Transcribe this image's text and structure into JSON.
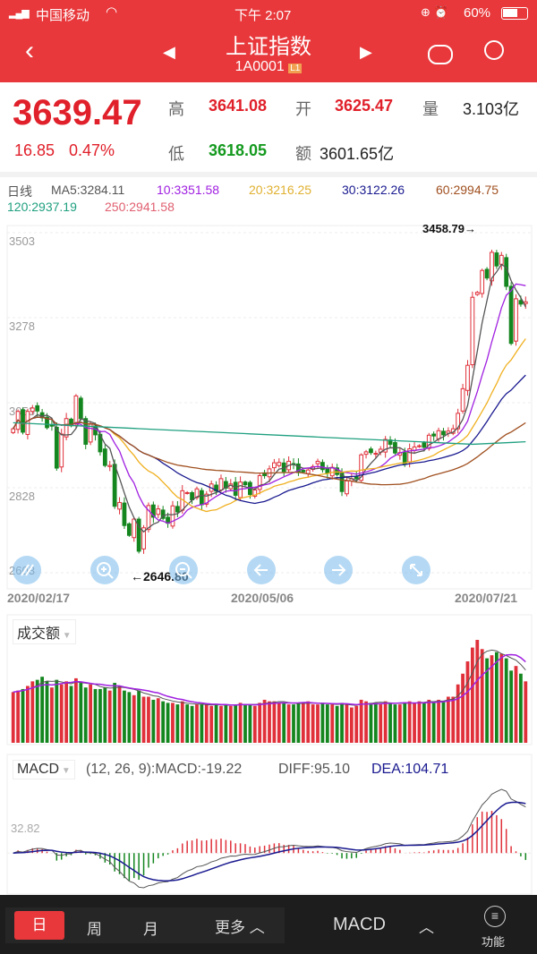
{
  "status": {
    "carrier": "中国移动",
    "time": "下午 2:07",
    "battery": "60%"
  },
  "nav": {
    "title": "上证指数",
    "code": "1A0001",
    "level_badge": "L1",
    "icons": [
      "back-chevron-icon",
      "prev-triangle-icon",
      "next-triangle-icon",
      "robot-icon",
      "search-icon"
    ]
  },
  "quote": {
    "price": "3639.47",
    "change": "16.85",
    "change_pct": "0.47%",
    "high_label": "高",
    "high": "3641.08",
    "open_label": "开",
    "open": "3625.47",
    "vol_label": "量",
    "vol": "3.103亿",
    "low_label": "低",
    "low": "3618.05",
    "amount_label": "额",
    "amount": "3601.65亿"
  },
  "ma_legend": {
    "period": "日线",
    "ma5": "MA5:3284.11",
    "ma10": "10:3351.58",
    "ma20": "20:3216.25",
    "ma30": "30:3122.26",
    "ma60": "60:2994.75",
    "ma120": "120:2937.19",
    "ma250": "250:2941.58"
  },
  "colors": {
    "up": "#e0303a",
    "down": "#14861f",
    "ma5": "#555555",
    "ma10": "#a020e0",
    "ma20": "#f0b020",
    "ma30": "#1a1a90",
    "ma60": "#a05020",
    "ma120": "#20a080",
    "ma250": "#e06070",
    "accent": "#e8383b"
  },
  "chart_data": {
    "type": "candlestick",
    "y_ticks": [
      "3503",
      "3278",
      "3053",
      "2828",
      "2603"
    ],
    "ylim": [
      2603,
      3503
    ],
    "x_labels": [
      "2020/02/17",
      "2020/05/06",
      "2020/07/21"
    ],
    "max_marker": "3458.79→",
    "min_marker": "←2646.80",
    "closes": [
      2984,
      3030,
      2975,
      3030,
      3039,
      3031,
      3013,
      2987,
      2991,
      2880,
      2970,
      3011,
      2992,
      3071,
      3011,
      2943,
      2996,
      2968,
      2923,
      2887,
      2887,
      2779,
      2789,
      2728,
      2702,
      2745,
      2660,
      2722,
      2781,
      2750,
      2772,
      2747,
      2734,
      2780,
      2764,
      2820,
      2815,
      2796,
      2825,
      2783,
      2811,
      2838,
      2819,
      2852,
      2827,
      2838,
      2808,
      2843,
      2836,
      2810,
      2822,
      2860,
      2860,
      2878,
      2894,
      2895,
      2871,
      2898,
      2891,
      2868,
      2870,
      2875,
      2884,
      2898,
      2876,
      2867,
      2882,
      2863,
      2818,
      2846,
      2852,
      2852,
      2915,
      2923,
      2921,
      2919,
      2930,
      2956,
      2943,
      2920,
      2921,
      2890,
      2931,
      2936,
      2939,
      2935,
      2967,
      2965,
      2979,
      2968,
      2978,
      2984,
      3025,
      3090,
      3152,
      3332,
      3345,
      3403,
      3383,
      3451,
      3415,
      3443,
      3361,
      3210,
      3328,
      3314,
      3320
    ],
    "volume_label": "成交额",
    "volumes": [
      3300,
      3400,
      3500,
      3700,
      4000,
      4100,
      4300,
      4000,
      3600,
      4100,
      3800,
      4000,
      3700,
      4200,
      3900,
      3600,
      3800,
      3500,
      3500,
      3600,
      3400,
      3900,
      3700,
      3400,
      3300,
      3100,
      3400,
      3000,
      3000,
      2800,
      2900,
      2700,
      2600,
      2600,
      2500,
      2700,
      2500,
      2400,
      2500,
      2500,
      2500,
      2400,
      2500,
      2400,
      2500,
      2400,
      2500,
      2600,
      2500,
      2500,
      2400,
      2600,
      2800,
      2700,
      2700,
      2600,
      2600,
      2500,
      2500,
      2600,
      2600,
      2700,
      2500,
      2500,
      2600,
      2500,
      2500,
      2400,
      2600,
      2500,
      2300,
      2400,
      2800,
      2700,
      2600,
      2600,
      2500,
      2700,
      2600,
      2500,
      2500,
      2600,
      2700,
      2600,
      2700,
      2600,
      2800,
      2700,
      2800,
      2700,
      3000,
      3000,
      3800,
      4500,
      5300,
      6200,
      6700,
      6100,
      5500,
      5700,
      5900,
      5800,
      5500,
      4700,
      5000,
      4500,
      4000
    ],
    "macd": {
      "label": "MACD",
      "params": "(12, 26, 9):MACD:-19.22",
      "diff": "DIFF:95.10",
      "dea": "DEA:104.71",
      "tick": "32.82"
    }
  },
  "bottom": {
    "day": "日",
    "week": "周",
    "month": "月",
    "more": "更多",
    "indicator": "MACD",
    "func": "功能"
  }
}
